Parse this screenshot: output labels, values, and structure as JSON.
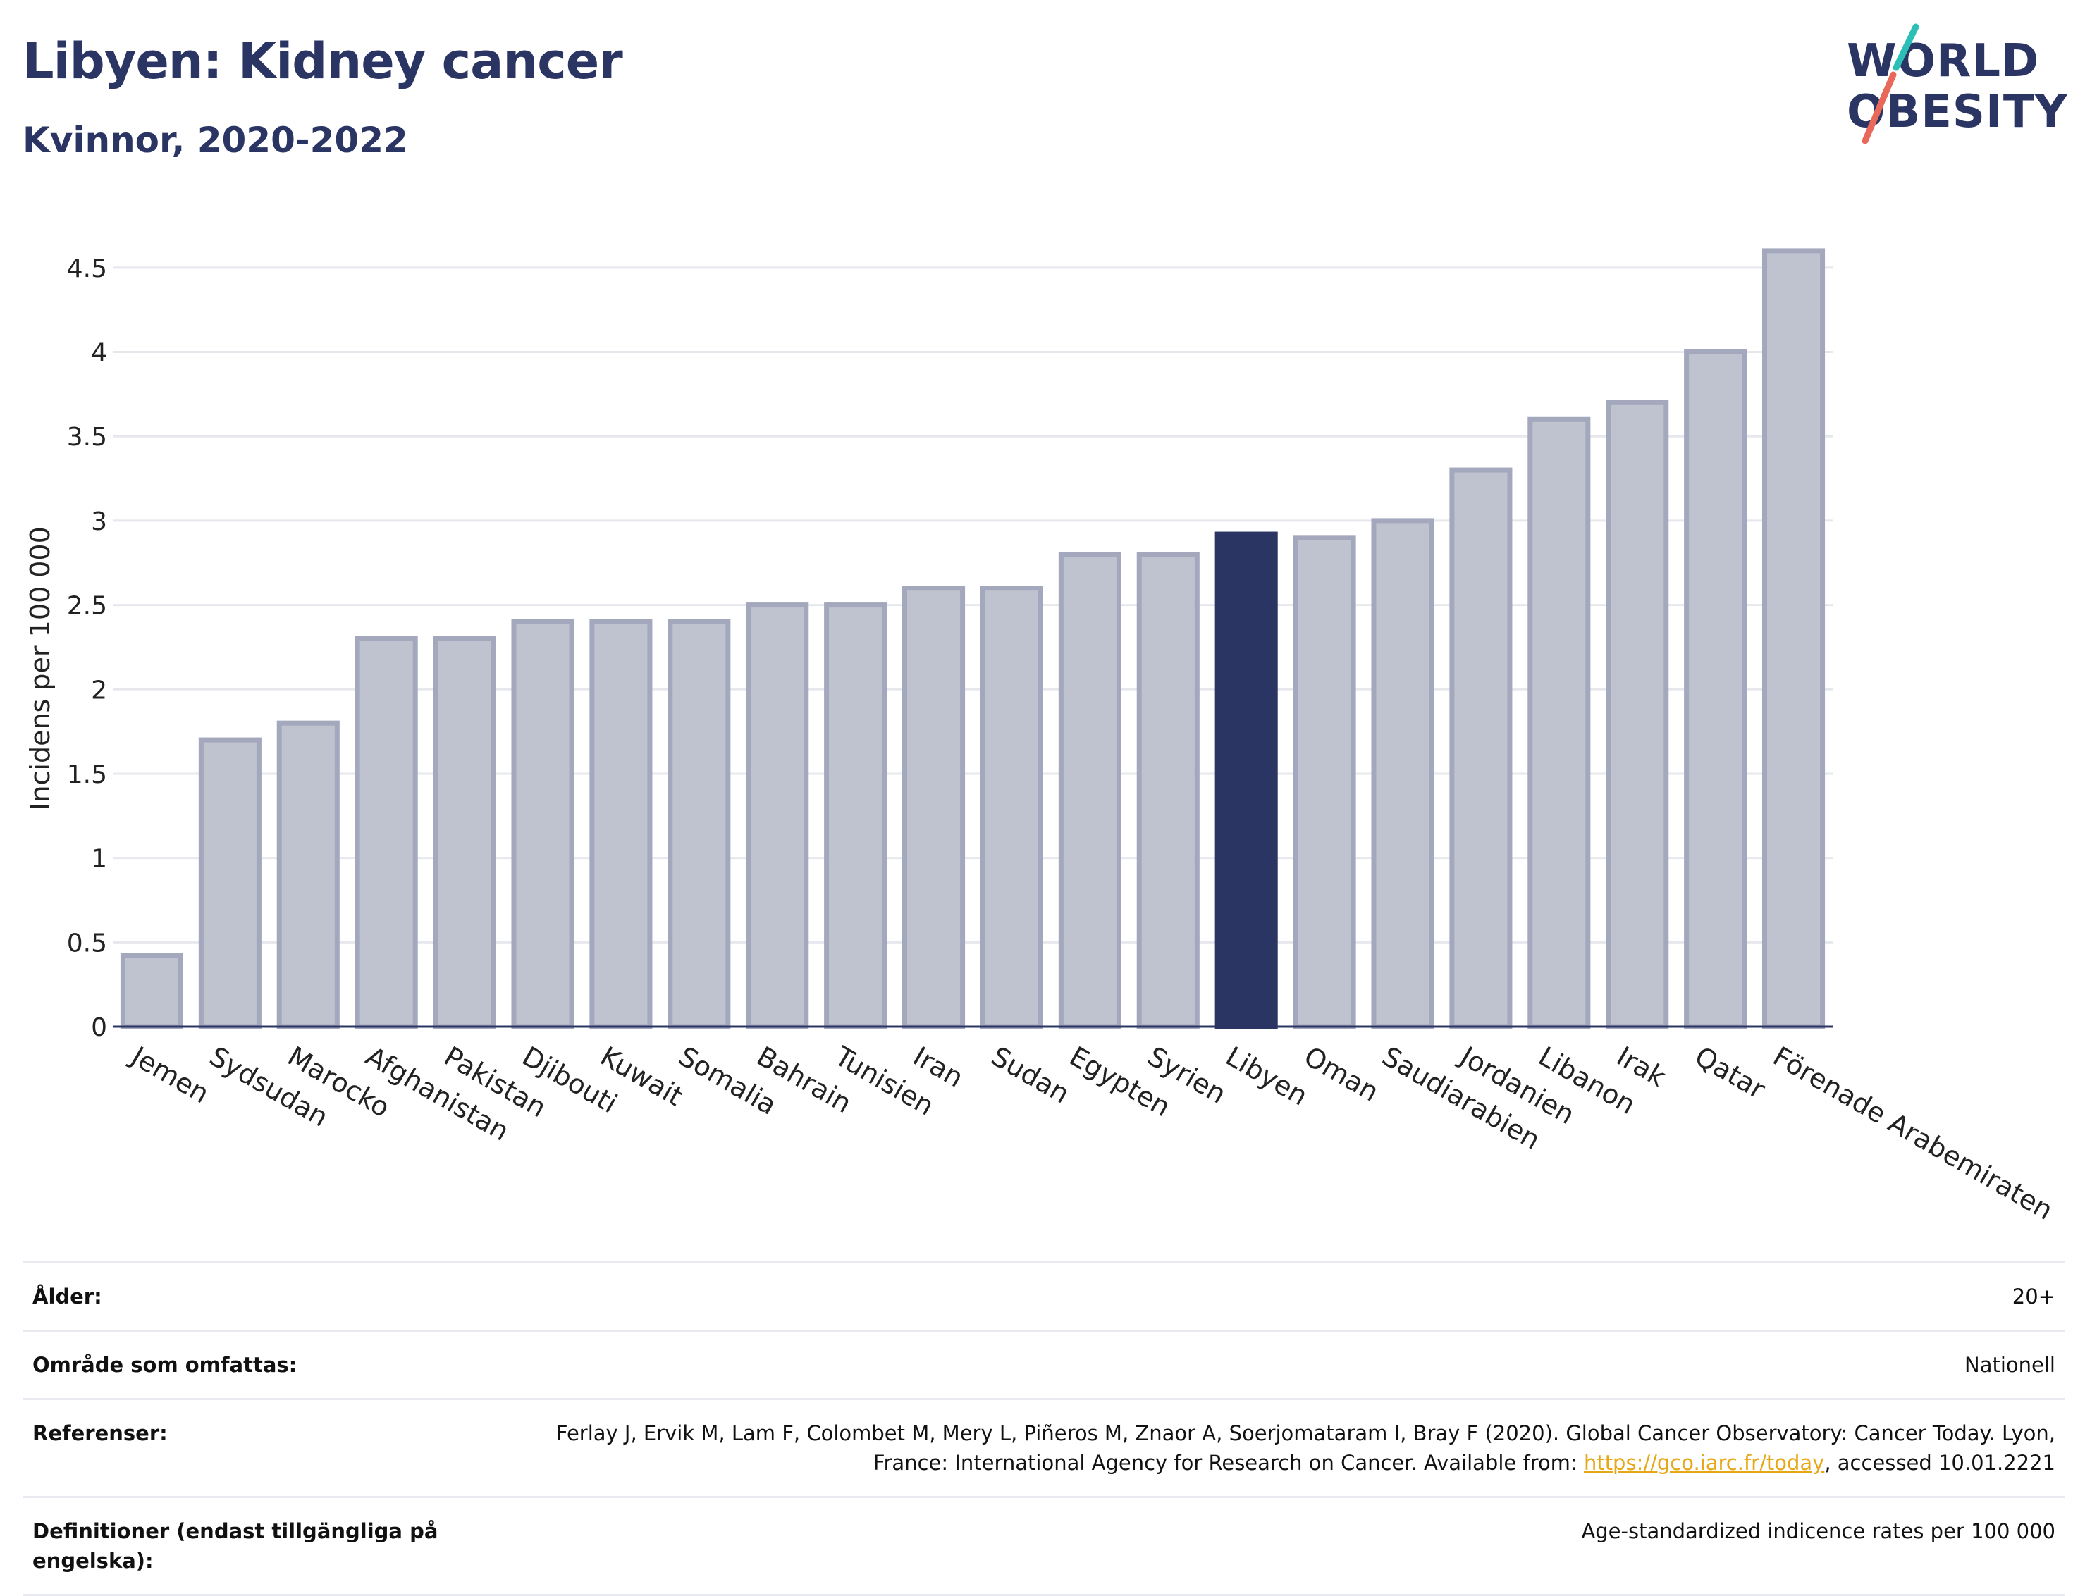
{
  "header": {
    "title": "Libyen: Kidney cancer",
    "subtitle": "Kvinnor, 2020-2022"
  },
  "logo": {
    "line1": "WORLD",
    "line2": "OBESITY"
  },
  "colors": {
    "bar_fill": "#bfc2cf",
    "bar_stroke": "#a3a8bd",
    "highlight": "#2b3563",
    "grid": "#e6e8ee",
    "logo_teal": "#2bbfb5",
    "logo_coral": "#e8685a"
  },
  "chart_data": {
    "type": "bar",
    "title": "Libyen: Kidney cancer",
    "subtitle": "Kvinnor, 2020-2022",
    "xlabel": "",
    "ylabel": "Incidens per 100 000",
    "ylim": [
      0,
      4.75
    ],
    "yticks": [
      0,
      0.5,
      1,
      1.5,
      2,
      2.5,
      3,
      3.5,
      4,
      4.5
    ],
    "ytick_labels": [
      "0",
      "0.5",
      "1",
      "1.5",
      "2",
      "2.5",
      "3",
      "3.5",
      "4",
      "4.5"
    ],
    "grid": true,
    "highlight_category": "Libyen",
    "categories": [
      "Jemen",
      "Sydsudan",
      "Marocko",
      "Afghanistan",
      "Pakistan",
      "Djibouti",
      "Kuwait",
      "Somalia",
      "Bahrain",
      "Tunisien",
      "Iran",
      "Sudan",
      "Egypten",
      "Syrien",
      "Libyen",
      "Oman",
      "Saudiarabien",
      "Jordanien",
      "Libanon",
      "Irak",
      "Qatar",
      "Förenade Arabemiraten"
    ],
    "values": [
      0.42,
      1.7,
      1.8,
      2.3,
      2.3,
      2.4,
      2.4,
      2.4,
      2.5,
      2.5,
      2.6,
      2.6,
      2.8,
      2.8,
      2.92,
      2.9,
      3.0,
      3.3,
      3.6,
      3.7,
      4.0,
      4.6
    ]
  },
  "info": [
    {
      "key": "Ålder:",
      "value": "20+"
    },
    {
      "key": "Område som omfattas:",
      "value": "Nationell"
    },
    {
      "key": "Referenser:",
      "value_pre": "Ferlay J, Ervik M, Lam F, Colombet M, Mery L, Piñeros M, Znaor A, Soerjomataram I, Bray F (2020). Global Cancer Observatory: Cancer Today. Lyon, France: International Agency for Research on Cancer. Available from: ",
      "link": "https://gco.iarc.fr/today",
      "value_post": ", accessed 10.01.2221"
    },
    {
      "key": "Definitioner (endast tillgängliga på engelska):",
      "value": "Age-standardized indicence rates per 100 000"
    }
  ]
}
